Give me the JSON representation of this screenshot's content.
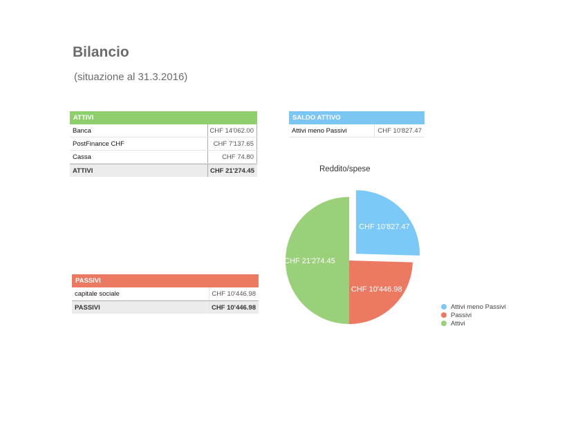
{
  "document": {
    "title": "Bilancio",
    "subtitle": "(situazione al 31.3.2016)"
  },
  "attivi_table": {
    "header": "ATTIVI",
    "rows": [
      {
        "label": "Banca",
        "value": "CHF 14'062.00"
      },
      {
        "label": "PostFinance CHF",
        "value": "CHF 7'137.65"
      },
      {
        "label": "Cassa",
        "value": "CHF 74.80"
      }
    ],
    "total": {
      "label": "ATTIVI",
      "value": "CHF 21'274.45"
    }
  },
  "saldo_table": {
    "header": "SALDO ATTIVO",
    "rows": [
      {
        "label": "Attivi meno Passivi",
        "value": "CHF 10'827.47"
      }
    ]
  },
  "passivi_table": {
    "header": "PASSIVI",
    "rows": [
      {
        "label": "capitale sociale",
        "value": "CHF 10'446.98"
      }
    ],
    "total": {
      "label": "PASSIVI",
      "value": "CHF 10'446.98"
    }
  },
  "chart_data": {
    "type": "pie",
    "title": "Reddito/spese",
    "slices": [
      {
        "name": "Attivi meno Passivi",
        "value": 10827.47,
        "label": "CHF 10'827.47",
        "color": "#7cc8f6",
        "exploded": true
      },
      {
        "name": "Passivi",
        "value": 10446.98,
        "label": "CHF 10'446.98",
        "color": "#ec7a63",
        "exploded": false
      },
      {
        "name": "Attivi",
        "value": 21274.45,
        "label": "CHF 21'274.45",
        "color": "#9bd07a",
        "exploded": false
      }
    ],
    "legend": [
      "Attivi meno Passivi",
      "Passivi",
      "Attivi"
    ],
    "legend_position": "right"
  }
}
